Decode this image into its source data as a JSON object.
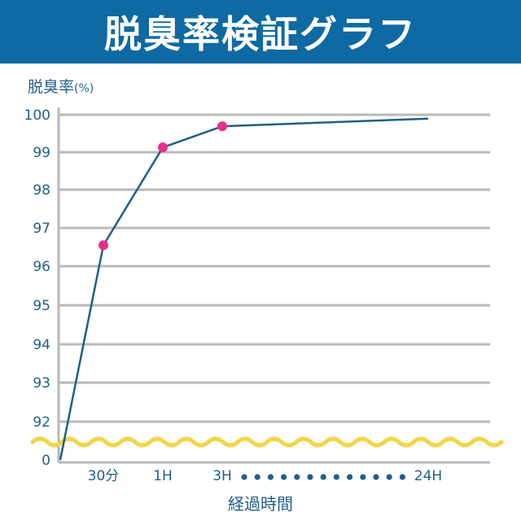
{
  "header": {
    "title": "脱臭率検証グラフ"
  },
  "colors": {
    "header_bg": "#0f6aa3",
    "line": "#1f5f86",
    "marker": "#e8308a",
    "axis_text": "#1f5f86",
    "grid": "#b8b8b8",
    "break_line": "#f2d54a"
  },
  "chart_data": {
    "type": "line",
    "title": "脱臭率検証グラフ",
    "ylabel": "脱臭率",
    "yunit": "(%)",
    "xlabel": "経過時間",
    "x_ticks": [
      "30分",
      "1H",
      "3H",
      "24H"
    ],
    "x_gap_marker": "dots between 3H and 24H",
    "y_ticks": [
      "0",
      "92",
      "93",
      "94",
      "95",
      "96",
      "97",
      "98",
      "99",
      "100"
    ],
    "y_axis_break": "wavy line between 0 and 92",
    "grid": "horizontal lines",
    "series": [
      {
        "x": [
          "0",
          "30分",
          "1H",
          "3H",
          "24H"
        ],
        "y": [
          0,
          96.6,
          99.15,
          99.7,
          99.9
        ],
        "markers": [
          false,
          true,
          true,
          true,
          false
        ]
      }
    ]
  }
}
